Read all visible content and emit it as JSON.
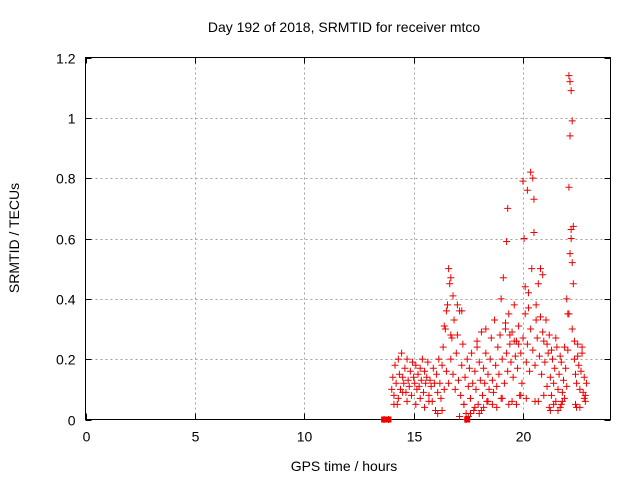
{
  "chart_data": {
    "type": "scatter",
    "title": "Day 192 of 2018, SRMTID for receiver mtco",
    "xlabel": "GPS time / hours",
    "ylabel": "SRMTID / TECUs",
    "xlim": [
      0,
      24
    ],
    "ylim": [
      0,
      1.2
    ],
    "xticks": [
      0,
      5,
      10,
      15,
      20
    ],
    "xtick_labels": [
      "0",
      "5",
      "10",
      "15",
      "20"
    ],
    "yticks": [
      0,
      0.2,
      0.4,
      0.6,
      0.8,
      1.0,
      1.2
    ],
    "ytick_labels": [
      "0",
      "0.2",
      "0.4",
      "0.6",
      "0.8",
      "1",
      "1.2"
    ],
    "grid": true,
    "series": [
      {
        "name": "SRMTID",
        "color": "#ee0000",
        "marker": "+",
        "x": [
          13.65,
          13.85,
          14.0,
          14.05,
          14.1,
          14.15,
          14.2,
          14.25,
          14.3,
          14.35,
          14.4,
          14.45,
          14.5,
          14.55,
          14.6,
          14.65,
          14.7,
          14.75,
          14.8,
          14.85,
          14.9,
          14.95,
          15.0,
          15.05,
          15.1,
          15.15,
          15.2,
          15.25,
          15.3,
          15.35,
          15.4,
          15.45,
          15.5,
          15.55,
          15.6,
          15.65,
          15.7,
          15.75,
          15.8,
          15.85,
          15.9,
          15.95,
          16.0,
          16.05,
          16.1,
          16.15,
          16.2,
          16.25,
          16.3,
          16.35,
          16.4,
          16.45,
          16.5,
          16.55,
          16.6,
          16.65,
          16.7,
          16.75,
          16.8,
          16.85,
          16.9,
          16.95,
          17.0,
          17.05,
          17.1,
          17.15,
          17.2,
          17.25,
          17.3,
          17.35,
          17.4,
          17.45,
          17.5,
          17.55,
          17.6,
          17.65,
          17.7,
          17.75,
          17.8,
          17.85,
          17.9,
          17.95,
          18.0,
          18.05,
          18.1,
          18.15,
          18.2,
          18.25,
          18.3,
          18.35,
          18.4,
          18.45,
          18.5,
          18.55,
          18.6,
          18.65,
          18.7,
          18.75,
          18.8,
          18.85,
          18.9,
          18.95,
          19.0,
          19.05,
          19.1,
          19.15,
          19.2,
          19.25,
          19.3,
          19.35,
          19.4,
          19.45,
          19.5,
          19.55,
          19.6,
          19.65,
          19.7,
          19.75,
          19.8,
          19.85,
          19.9,
          19.95,
          20.0,
          20.05,
          20.1,
          20.15,
          20.2,
          20.25,
          20.3,
          20.35,
          20.4,
          20.45,
          20.5,
          20.55,
          20.6,
          20.65,
          20.7,
          20.75,
          20.8,
          20.85,
          20.9,
          20.95,
          21.0,
          21.05,
          21.1,
          21.15,
          21.2,
          21.25,
          21.3,
          21.35,
          21.4,
          21.45,
          21.5,
          21.55,
          21.6,
          21.65,
          21.7,
          21.75,
          21.8,
          21.85,
          21.9,
          21.95,
          22.0,
          22.05,
          22.1,
          22.15,
          22.2,
          22.25,
          22.3,
          22.35,
          22.4,
          22.45,
          22.5,
          22.55,
          22.6,
          22.65,
          22.7,
          22.75,
          22.8,
          22.85,
          22.9,
          16.6,
          16.7,
          16.8,
          17.0,
          17.2,
          19.25,
          19.3,
          20.0,
          20.2,
          20.35,
          20.45,
          20.5,
          20.8,
          22.1,
          22.15,
          22.2,
          22.25,
          22.3,
          22.15,
          22.1,
          22.2,
          22.25,
          22.0,
          16.4,
          16.5,
          16.7,
          17.9,
          18.3,
          19.2,
          19.4,
          19.6,
          19.8,
          20.1,
          20.25,
          20.6,
          20.9,
          21.1,
          21.3,
          21.5,
          21.7,
          21.9,
          22.05,
          22.35,
          22.5,
          22.7,
          14.1,
          14.3,
          14.5,
          14.7,
          15.1,
          15.3,
          15.5,
          15.7,
          16.1,
          16.3,
          17.1,
          17.3,
          17.6,
          17.8,
          18.1,
          18.4,
          18.6,
          18.8,
          19.0,
          19.5,
          19.7,
          19.9,
          20.15,
          20.7,
          21.2,
          21.4,
          21.6,
          21.8,
          22.4,
          22.6,
          22.8,
          17.4,
          17.5,
          18.0,
          18.2,
          19.05,
          19.35,
          20.55,
          20.95,
          21.25,
          21.75,
          22.45,
          22.85
        ],
        "y": [
          0.0,
          0.0,
          0.1,
          0.14,
          0.08,
          0.18,
          0.12,
          0.05,
          0.2,
          0.15,
          0.1,
          0.22,
          0.14,
          0.12,
          0.17,
          0.09,
          0.2,
          0.13,
          0.11,
          0.16,
          0.08,
          0.19,
          0.14,
          0.12,
          0.18,
          0.1,
          0.15,
          0.11,
          0.17,
          0.13,
          0.2,
          0.09,
          0.16,
          0.12,
          0.14,
          0.19,
          0.08,
          0.13,
          0.11,
          0.06,
          0.17,
          0.12,
          0.03,
          0.15,
          0.09,
          0.2,
          0.12,
          0.07,
          0.18,
          0.24,
          0.1,
          0.3,
          0.16,
          0.38,
          0.12,
          0.45,
          0.2,
          0.27,
          0.15,
          0.33,
          0.1,
          0.22,
          0.28,
          0.13,
          0.36,
          0.08,
          0.18,
          0.25,
          0.05,
          0.14,
          0.0,
          0.2,
          0.11,
          0.17,
          0.07,
          0.22,
          0.12,
          0.03,
          0.16,
          0.1,
          0.24,
          0.05,
          0.19,
          0.13,
          0.29,
          0.08,
          0.17,
          0.12,
          0.22,
          0.06,
          0.15,
          0.1,
          0.2,
          0.27,
          0.13,
          0.09,
          0.33,
          0.18,
          0.11,
          0.24,
          0.15,
          0.28,
          0.4,
          0.2,
          0.47,
          0.12,
          0.3,
          0.22,
          0.16,
          0.35,
          0.25,
          0.19,
          0.29,
          0.14,
          0.38,
          0.21,
          0.26,
          0.17,
          0.31,
          0.08,
          0.22,
          0.12,
          0.27,
          0.6,
          0.35,
          0.19,
          0.25,
          0.42,
          0.16,
          0.3,
          0.5,
          0.23,
          0.62,
          0.18,
          0.38,
          0.27,
          0.45,
          0.21,
          0.34,
          0.15,
          0.48,
          0.26,
          0.19,
          0.33,
          0.11,
          0.22,
          0.28,
          0.14,
          0.08,
          0.2,
          0.12,
          0.17,
          0.06,
          0.24,
          0.1,
          0.15,
          0.04,
          0.19,
          0.09,
          0.13,
          0.07,
          0.17,
          0.11,
          0.23,
          0.35,
          0.55,
          0.63,
          0.3,
          0.45,
          0.2,
          0.15,
          0.12,
          0.25,
          0.18,
          0.1,
          0.16,
          0.22,
          0.09,
          0.14,
          0.08,
          0.12,
          0.5,
          0.47,
          0.41,
          0.38,
          0.36,
          0.59,
          0.7,
          0.79,
          0.76,
          0.82,
          0.8,
          0.73,
          0.5,
          1.14,
          1.12,
          1.09,
          0.99,
          0.64,
          0.94,
          0.77,
          0.6,
          0.52,
          0.4,
          0.31,
          0.36,
          0.28,
          0.26,
          0.3,
          0.32,
          0.28,
          0.26,
          0.25,
          0.44,
          0.37,
          0.33,
          0.29,
          0.25,
          0.23,
          0.27,
          0.21,
          0.24,
          0.35,
          0.26,
          0.21,
          0.24,
          0.05,
          0.07,
          0.09,
          0.06,
          0.05,
          0.07,
          0.04,
          0.06,
          0.02,
          0.03,
          0.01,
          0.05,
          0.02,
          0.04,
          0.03,
          0.06,
          0.05,
          0.04,
          0.07,
          0.06,
          0.05,
          0.08,
          0.07,
          0.06,
          0.04,
          0.05,
          0.03,
          0.06,
          0.05,
          0.04,
          0.07,
          0.02,
          0.01,
          0.02,
          0.04,
          0.07,
          0.05,
          0.06,
          0.08,
          0.03,
          0.05,
          0.04,
          0.06
        ]
      }
    ],
    "square_markers": {
      "x": [
        13.65,
        13.85,
        17.45
      ],
      "y": [
        0.0,
        0.0,
        0.0
      ]
    }
  }
}
